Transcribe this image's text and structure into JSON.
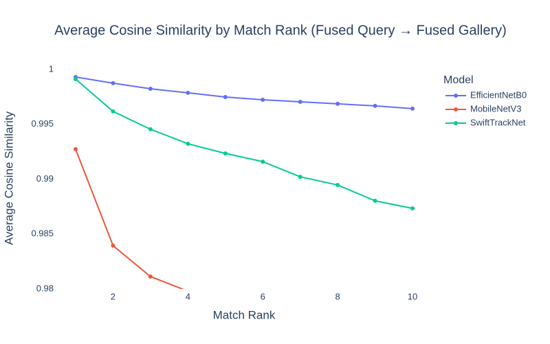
{
  "chart_data": {
    "type": "line",
    "title": "Average Cosine Similarity by Match Rank (Fused Query → Fused Gallery)",
    "x_label": "Match Rank",
    "y_label": "Average Cosine Similarity",
    "legend_title": "Model",
    "x": [
      1,
      2,
      3,
      4,
      5,
      6,
      7,
      8,
      9,
      10
    ],
    "series": [
      {
        "name": "EfficientNetB0",
        "color": "#636efa",
        "values": [
          0.99931,
          0.99875,
          0.99824,
          0.99787,
          0.99749,
          0.99724,
          0.99705,
          0.99687,
          0.99668,
          0.99643
        ]
      },
      {
        "name": "MobileNetV3",
        "color": "#ef553b",
        "values": [
          0.99273,
          0.98395,
          0.98113,
          0.9798,
          null,
          null,
          null,
          null,
          null,
          null
        ]
      },
      {
        "name": "SwiftTrackNet",
        "color": "#00cc96",
        "values": [
          0.99912,
          0.99618,
          0.99455,
          0.99323,
          0.99235,
          0.9916,
          0.99022,
          0.98947,
          0.98803,
          0.98734
        ]
      }
    ],
    "xlim": [
      0.67,
      10.33
    ],
    "ylim": [
      0.98,
      1.001
    ],
    "xticks": [
      2,
      4,
      6,
      8,
      10
    ],
    "yticks": [
      0.98,
      0.985,
      0.99,
      0.995,
      1
    ],
    "grid": false,
    "legend": "right",
    "markers": true
  }
}
